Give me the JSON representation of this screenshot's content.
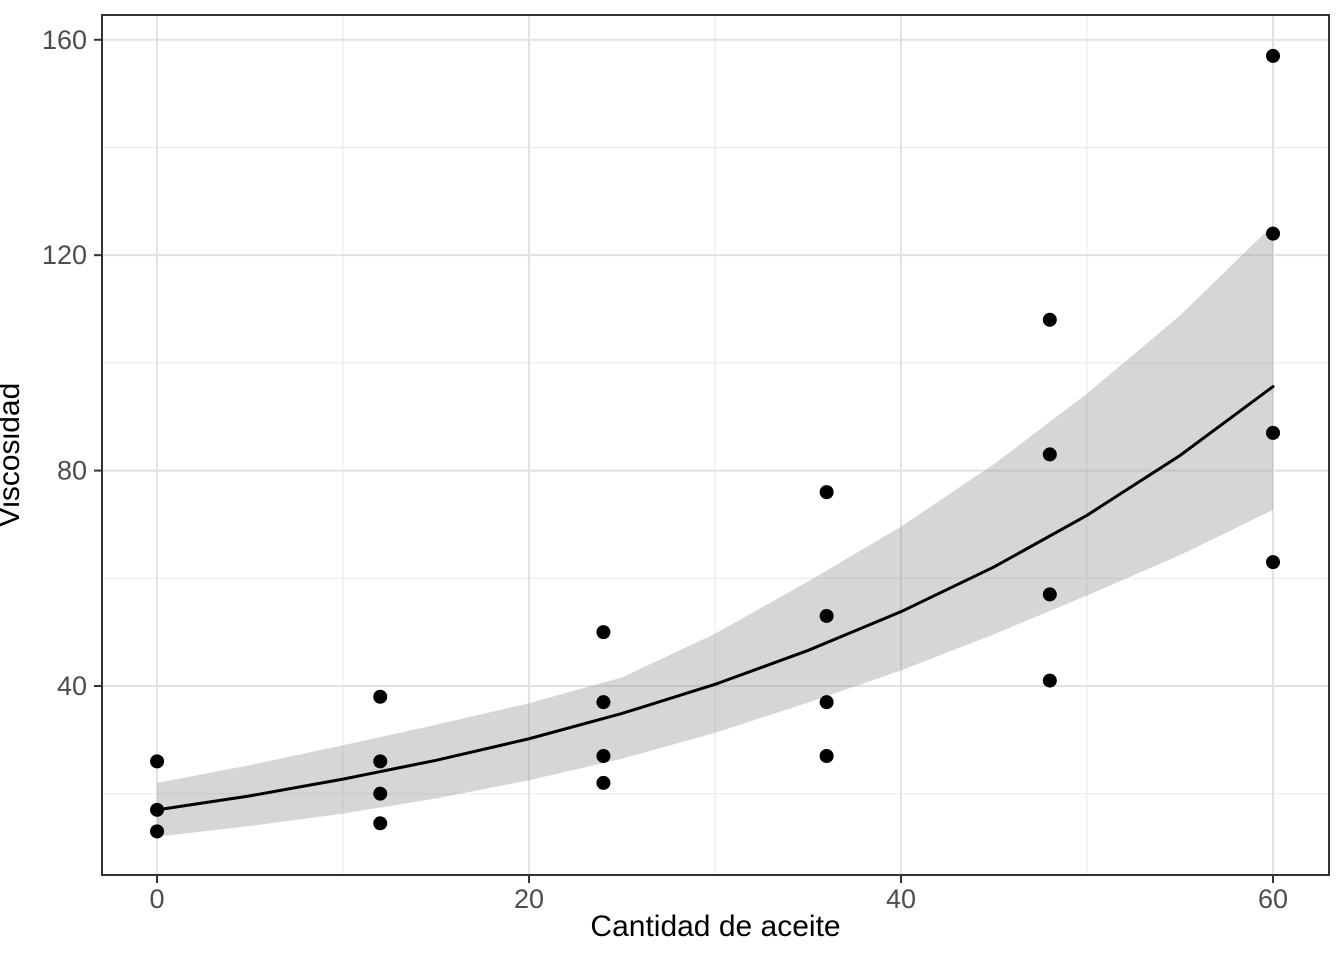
{
  "chart_data": {
    "type": "scatter",
    "title": "",
    "xlabel": "Cantidad de aceite",
    "ylabel": "Viscosidad",
    "xlim": [
      -2.96,
      63.01
    ],
    "ylim": [
      4.9,
      164.6
    ],
    "x_major_ticks": [
      0,
      20,
      40,
      60
    ],
    "x_minor_ticks": [
      10,
      30,
      50
    ],
    "y_major_ticks": [
      40,
      80,
      120,
      160
    ],
    "y_minor_ticks": [
      20,
      60,
      100,
      140
    ],
    "grid": true,
    "legend": "none",
    "points": [
      [
        0,
        26
      ],
      [
        0,
        17
      ],
      [
        0,
        13
      ],
      [
        12,
        38
      ],
      [
        12,
        26
      ],
      [
        12,
        20
      ],
      [
        12,
        14.5
      ],
      [
        24,
        50
      ],
      [
        24,
        37
      ],
      [
        24,
        27
      ],
      [
        24,
        22
      ],
      [
        36,
        76
      ],
      [
        36,
        53
      ],
      [
        36,
        37
      ],
      [
        36,
        27
      ],
      [
        48,
        108
      ],
      [
        48,
        83
      ],
      [
        48,
        57
      ],
      [
        48,
        41
      ],
      [
        60,
        157
      ],
      [
        60,
        124
      ],
      [
        60,
        87
      ],
      [
        60,
        63
      ]
    ],
    "fit_line": {
      "x": [
        0,
        5,
        10,
        15,
        20,
        25,
        30,
        35,
        40,
        45,
        50,
        55,
        60
      ],
      "y": [
        17.0,
        19.6,
        22.7,
        26.2,
        30.2,
        34.9,
        40.3,
        46.6,
        53.8,
        62.1,
        71.7,
        82.8,
        95.6
      ]
    },
    "ribbon": {
      "x": [
        0,
        5,
        10,
        15,
        20,
        25,
        30,
        35,
        40,
        45,
        50,
        55,
        60
      ],
      "upper": [
        22.0,
        25.3,
        29.0,
        32.8,
        36.8,
        41.6,
        49.7,
        59.4,
        69.6,
        81.2,
        94.3,
        108.8,
        125.6
      ],
      "lower": [
        12.0,
        14.0,
        16.3,
        19.1,
        22.5,
        26.5,
        31.3,
        36.9,
        42.9,
        49.6,
        56.8,
        64.3,
        72.7
      ]
    },
    "colors": {
      "point": "#000000",
      "fit_line": "#000000",
      "ribbon": "rgba(153,153,153,0.4)",
      "grid_major": "#e2e2e2",
      "grid_minor": "#ececec",
      "panel_border": "#333333",
      "tick_mark": "#333333",
      "tick_label": "#4d4d4d",
      "axis_title": "#000000",
      "background": "#ffffff"
    }
  }
}
